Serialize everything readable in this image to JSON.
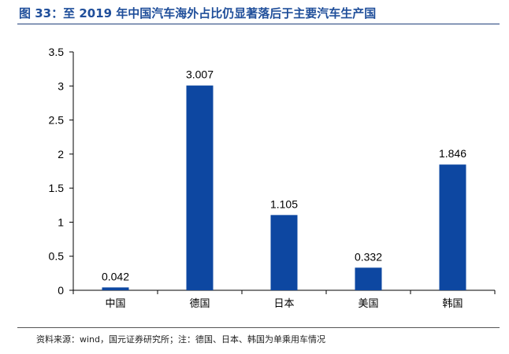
{
  "figure": {
    "title": "图 33：至 2019 年中国汽车海外占比仍显著落后于主要汽车生产国",
    "source": "资料来源：wind，国元证券研究所；注：德国、日本、韩国为单乘用车情况"
  },
  "chart_data": {
    "type": "bar",
    "categories": [
      "中国",
      "德国",
      "日本",
      "美国",
      "韩国"
    ],
    "values": [
      0.042,
      3.007,
      1.105,
      0.332,
      1.846
    ],
    "value_labels": [
      "0.042",
      "3.007",
      "1.105",
      "0.332",
      "1.846"
    ],
    "ylim": [
      0,
      3.5
    ],
    "yticks": [
      "0",
      "0.5",
      "1",
      "1.5",
      "2",
      "2.5",
      "3",
      "3.5"
    ],
    "grid": false,
    "legend": "none",
    "bar_color": "#0d47a1"
  }
}
